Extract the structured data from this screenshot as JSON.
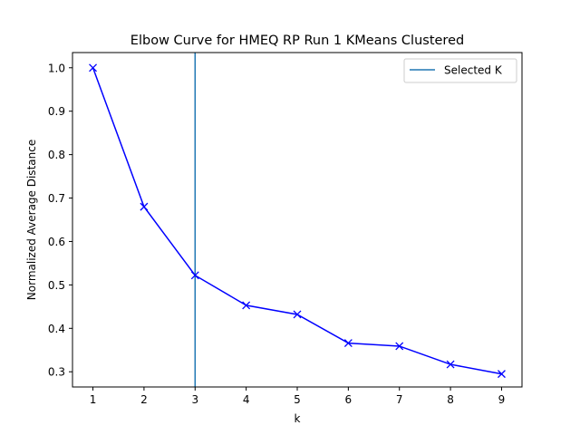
{
  "chart_data": {
    "type": "line",
    "title": "Elbow Curve for HMEQ RP Run 1 KMeans Clustered",
    "xlabel": "k",
    "ylabel": "Normalized Average Distance",
    "x": [
      1,
      2,
      3,
      4,
      5,
      6,
      7,
      8,
      9
    ],
    "xticks": [
      "1",
      "2",
      "3",
      "4",
      "5",
      "6",
      "7",
      "8",
      "9"
    ],
    "yticks": [
      "0.3",
      "0.4",
      "0.5",
      "0.6",
      "0.7",
      "0.8",
      "0.9",
      "1.0"
    ],
    "xlim": [
      0.6,
      9.4
    ],
    "ylim": [
      0.265,
      1.035
    ],
    "grid": false,
    "series": [
      {
        "values": [
          1.0,
          0.68,
          0.522,
          0.453,
          0.432,
          0.366,
          0.359,
          0.317,
          0.295
        ],
        "color": "#0000ff",
        "marker": "x"
      }
    ],
    "vline": {
      "name": "Selected K",
      "x": 3,
      "color": "#1f77b4"
    },
    "legend": {
      "position": "top-right",
      "entries": [
        "Selected K"
      ]
    }
  }
}
